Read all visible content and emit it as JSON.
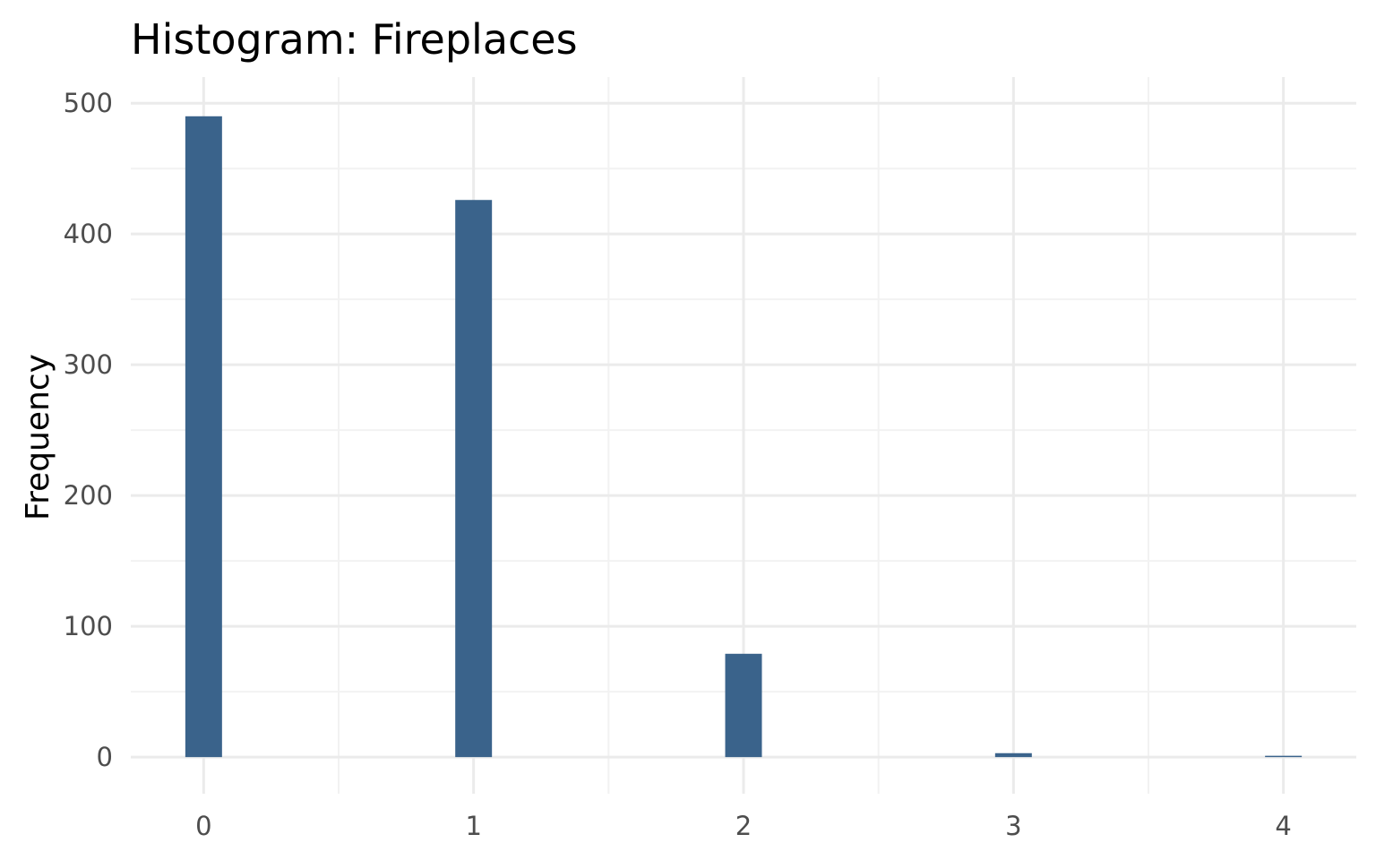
{
  "chart_data": {
    "type": "bar",
    "title": "Histogram:  Fireplaces",
    "xlabel": "",
    "ylabel": "Frequency",
    "x": [
      0,
      1,
      2,
      3,
      4
    ],
    "values": [
      490,
      426,
      79,
      3,
      1
    ],
    "xlim": [
      -0.27,
      4.27
    ],
    "ylim": [
      -28,
      520
    ],
    "x_ticks": [
      "0",
      "1",
      "2",
      "3",
      "4"
    ],
    "y_ticks": [
      "0",
      "100",
      "200",
      "300",
      "400",
      "500"
    ],
    "bar_color": "#3a638b",
    "grid": true,
    "legend": "none"
  }
}
